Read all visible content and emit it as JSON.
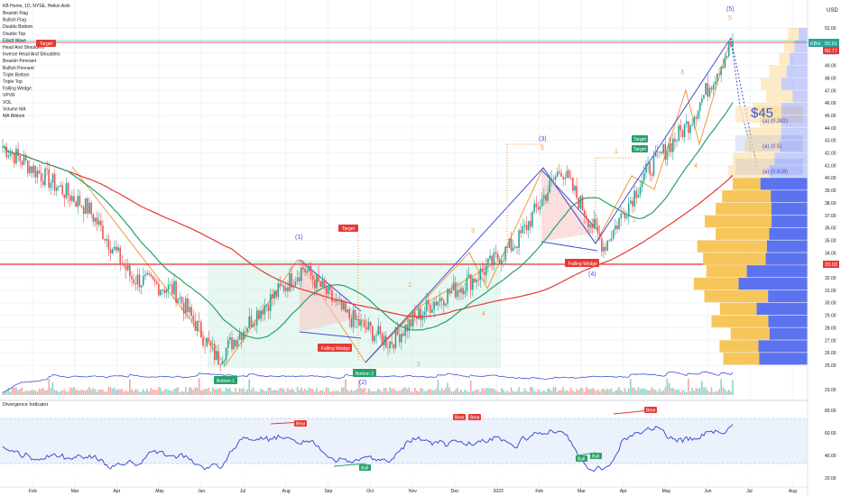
{
  "header": {
    "symbol_line": "KB Home, 1D, NYSE, Heikin Ashi",
    "currency": "USD"
  },
  "legend_items": [
    "Bearish Flag",
    "Bullish Flag",
    "Double Bottom",
    "Double Top",
    "Elliott Wave",
    "Head And Shoulders",
    "Inverse Head And Shoulders",
    "Bearish Pennant",
    "Bullish Pennant",
    "Triple Bottom",
    "Triple Top",
    "Falling Wedge",
    "VPVR",
    "VOL",
    "Volume MA",
    "MA Ribbon"
  ],
  "colors": {
    "up": "#26a69a",
    "down": "#ef5350",
    "ma_short": "#e53935",
    "ma_mid": "#26a269",
    "pattern_orange": "#f09a3e",
    "pattern_blue": "#3f51d5",
    "vpvr_yellow": "#f7c65a",
    "vpvr_blue": "#5b73ef",
    "level_red": "#e53935",
    "divergence_line": "#3f51d5"
  },
  "price_axis": {
    "ticks": [
      "52.00",
      "51.00",
      "50.00",
      "49.00",
      "48.00",
      "47.00",
      "46.00",
      "45.00",
      "44.00",
      "43.00",
      "42.00",
      "41.00",
      "40.00",
      "39.00",
      "38.00",
      "37.00",
      "36.00",
      "35.00",
      "34.00",
      "33.00",
      "32.00",
      "31.00",
      "30.00",
      "29.00",
      "28.00",
      "27.00",
      "26.00",
      "25.00",
      "23.00"
    ],
    "last_price_symbol": "KBH",
    "last_price": "50.91",
    "second_price": "50.77",
    "level_price": "33.00"
  },
  "time_axis": [
    "Feb",
    "Mar",
    "Apr",
    "May",
    "Jun",
    "Jul",
    "Aug",
    "Sep",
    "Oct",
    "Nov",
    "Dec",
    "2023",
    "Feb",
    "Mar",
    "Apr",
    "May",
    "Jun",
    "Jul",
    "Aug"
  ],
  "annotations": {
    "target1": "Target",
    "target2": "Target",
    "target3": "Target",
    "target4": "Target",
    "bottom1": "Bottom 1",
    "bottom2": "Bottom 2",
    "falling_wedge1": "Falling Wedge",
    "falling_wedge2": "Falling Wedge",
    "wave_1": "(1)",
    "wave_2": "(2)",
    "wave_3": "(3)",
    "wave_4": "(4)",
    "wave_5": "(5)",
    "sub_1": "1",
    "sub_2": "2",
    "sub_3": "3",
    "sub_4": "4",
    "sub_5": "5",
    "target_price": "$45",
    "fib_a": "(a) (0.382)",
    "fib_b": "(a) (0.5)",
    "fib_c": "(a) (0.618)"
  },
  "divergence": {
    "title": "Divergence Indicator",
    "ticks": [
      "80.00",
      "60.00",
      "40.00",
      "20.00"
    ],
    "bear": "Bear",
    "bull": "Bull"
  },
  "chart_data": {
    "type": "line",
    "title": "KB Home, 1D, NYSE, Heikin Ashi",
    "x_range": [
      "Jan 2022",
      "Aug 2023"
    ],
    "ylim": [
      23,
      52
    ],
    "price_path": [
      {
        "date": "Jan 2022",
        "close": 42.5
      },
      {
        "date": "Feb 2022",
        "close": 40.0
      },
      {
        "date": "Mar 2022",
        "close": 37.5
      },
      {
        "date": "Apr 2022",
        "close": 32.0
      },
      {
        "date": "May 2022",
        "close": 31.0
      },
      {
        "date": "Jun 2022",
        "close": 25.5
      },
      {
        "date": "Jul 2022",
        "close": 29.5
      },
      {
        "date": "Aug 2022",
        "close": 32.8
      },
      {
        "date": "Sep 2022",
        "close": 29.0
      },
      {
        "date": "Oct 2022",
        "close": 26.8
      },
      {
        "date": "Nov 2022",
        "close": 30.0
      },
      {
        "date": "Dec 2022",
        "close": 32.0
      },
      {
        "date": "Jan 2023",
        "close": 35.0
      },
      {
        "date": "Feb 2023",
        "close": 40.8
      },
      {
        "date": "Mar 2023",
        "close": 34.5
      },
      {
        "date": "Apr 2023",
        "close": 40.5
      },
      {
        "date": "May 2023",
        "close": 44.5
      },
      {
        "date": "Jun 2023",
        "close": 50.9
      }
    ],
    "horizontal_level": 33.0,
    "target_price": 45,
    "fib_levels": {
      "0.382": 44.9,
      "0.5": 42.9,
      "0.618": 40.9
    },
    "divergence_range": [
      20,
      80
    ]
  }
}
